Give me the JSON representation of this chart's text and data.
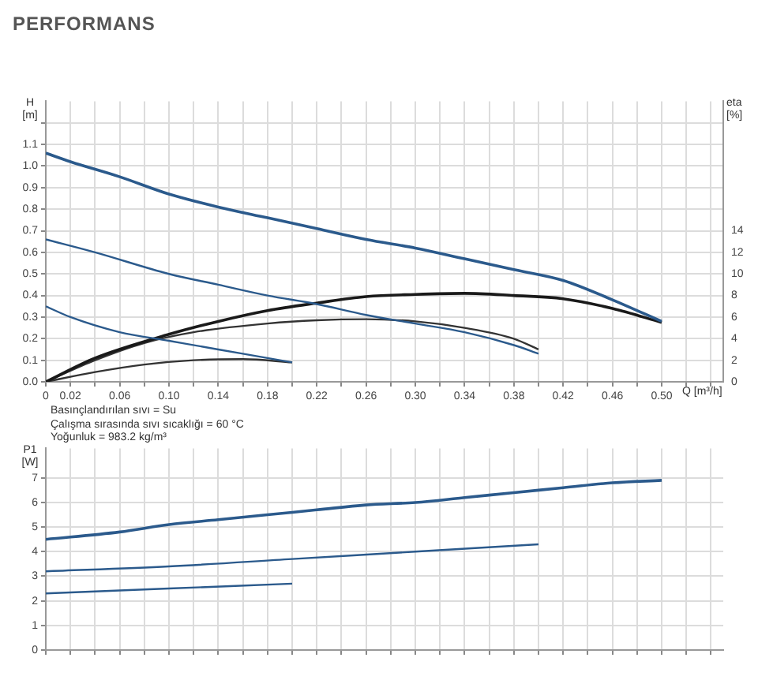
{
  "chart_data": [
    {
      "type": "line",
      "title": "PERFORMANS",
      "xlabel": "Q [m³/h]",
      "ylabel": "H [m]",
      "y2label": "eta [%]",
      "grid": true,
      "legend": false,
      "marker": "none",
      "annotations": [
        "Basınçlandırılan sıvı = Su",
        "Çalışma sırasında sıvı sıcaklığı = 60 °C",
        "Yoğunluk = 983.2 kg/m³"
      ],
      "xlim": [
        0,
        0.55
      ],
      "xticks": [
        {
          "value": 0,
          "label": "0"
        },
        0.02,
        {
          "value": 0.04,
          "label": null
        },
        0.06,
        {
          "value": 0.08,
          "label": null
        },
        {
          "value": 0.1,
          "label": "0.10"
        },
        {
          "value": 0.12,
          "label": null
        },
        0.14,
        {
          "value": 0.16,
          "label": null
        },
        0.18,
        {
          "value": 0.2,
          "label": null
        },
        0.22,
        {
          "value": 0.24,
          "label": null
        },
        0.26,
        {
          "value": 0.28,
          "label": null
        },
        {
          "value": 0.3,
          "label": "0.30"
        },
        {
          "value": 0.32,
          "label": null
        },
        0.34,
        {
          "value": 0.36,
          "label": null
        },
        0.38,
        {
          "value": 0.4,
          "label": null
        },
        0.42,
        {
          "value": 0.44,
          "label": null
        },
        0.46,
        {
          "value": 0.48,
          "label": null
        },
        {
          "value": 0.5,
          "label": "0.50"
        },
        {
          "value": 0.52,
          "label": null
        },
        {
          "value": 0.54,
          "label": null
        }
      ],
      "ylim": [
        0,
        1.3
      ],
      "yticks": [
        {
          "value": 0,
          "label": "0.0"
        },
        0.1,
        0.2,
        0.3,
        0.4,
        0.5,
        0.6,
        0.7,
        0.8,
        0.9,
        {
          "value": 1,
          "label": "1.0"
        },
        1.1,
        {
          "value": 1.2,
          "label": null
        }
      ],
      "y2lim": [
        0,
        26
      ],
      "y2ticks": [
        0,
        2,
        4,
        6,
        8,
        10,
        12,
        14
      ],
      "series": [
        {
          "color": "#2b5a8c",
          "x": [
            0,
            0.02,
            0.06,
            0.1,
            0.14,
            0.18,
            0.22,
            0.26,
            0.3,
            0.34,
            0.38,
            0.42,
            0.46,
            0.5
          ],
          "values": [
            1.06,
            1.02,
            0.95,
            0.87,
            0.81,
            0.76,
            0.71,
            0.66,
            0.62,
            0.57,
            0.52,
            0.47,
            0.38,
            0.28
          ]
        },
        {
          "color": "#2b5a8c",
          "x": [
            0,
            0.04,
            0.1,
            0.14,
            0.18,
            0.22,
            0.26,
            0.3,
            0.34,
            0.38,
            0.4
          ],
          "values": [
            0.66,
            0.6,
            0.5,
            0.45,
            0.4,
            0.36,
            0.31,
            0.27,
            0.23,
            0.17,
            0.13
          ]
        },
        {
          "color": "#2b5a8c",
          "x": [
            0,
            0.02,
            0.06,
            0.1,
            0.14,
            0.18,
            0.2
          ],
          "values": [
            0.35,
            0.3,
            0.23,
            0.19,
            0.15,
            0.11,
            0.09
          ]
        },
        {
          "color": "#1a1a1a",
          "axis": "y2",
          "x": [
            0,
            0.04,
            0.1,
            0.14,
            0.18,
            0.22,
            0.26,
            0.3,
            0.34,
            0.38,
            0.42,
            0.46,
            0.5
          ],
          "values": [
            0,
            2.2,
            4.4,
            5.6,
            6.6,
            7.3,
            7.9,
            8.1,
            8.2,
            8,
            7.7,
            6.8,
            5.5
          ]
        },
        {
          "color": "#333333",
          "axis": "y2",
          "x": [
            0,
            0.04,
            0.08,
            0.12,
            0.18,
            0.22,
            0.26,
            0.3,
            0.34,
            0.38,
            0.4
          ],
          "values": [
            0,
            2,
            3.6,
            4.6,
            5.4,
            5.7,
            5.8,
            5.6,
            5,
            4,
            3
          ]
        },
        {
          "color": "#333333",
          "axis": "y2",
          "x": [
            0,
            0.04,
            0.08,
            0.12,
            0.16,
            0.2
          ],
          "values": [
            0,
            0.9,
            1.6,
            2,
            2.1,
            1.8
          ]
        }
      ]
    },
    {
      "type": "line",
      "ylabel": "P1 [W]",
      "grid": true,
      "legend": false,
      "marker": "none",
      "tick_labels": "y",
      "xlim": [
        0,
        0.55
      ],
      "xticks": [
        0,
        0.02,
        0.04,
        0.06,
        0.08,
        0.1,
        0.12,
        0.14,
        0.16,
        0.18,
        0.2,
        0.22,
        0.24,
        0.26,
        0.28,
        0.3,
        0.32,
        0.34,
        0.36,
        0.38,
        0.4,
        0.42,
        0.44,
        0.46,
        0.48,
        0.5,
        0.52,
        0.54
      ],
      "ylim": [
        0,
        8.2
      ],
      "yticks": [
        0,
        1,
        2,
        3,
        4,
        5,
        6,
        7
      ],
      "series": [
        {
          "color": "#2b5a8c",
          "x": [
            0,
            0.06,
            0.1,
            0.14,
            0.18,
            0.22,
            0.26,
            0.3,
            0.34,
            0.38,
            0.42,
            0.46,
            0.5
          ],
          "values": [
            4.5,
            4.8,
            5.1,
            5.3,
            5.5,
            5.7,
            5.9,
            6,
            6.2,
            6.4,
            6.6,
            6.8,
            6.9
          ]
        },
        {
          "color": "#2b5a8c",
          "x": [
            0,
            0.1,
            0.2,
            0.3,
            0.4
          ],
          "values": [
            3.2,
            3.4,
            3.7,
            4,
            4.3
          ]
        },
        {
          "color": "#2b5a8c",
          "x": [
            0,
            0.1,
            0.2
          ],
          "values": [
            2.3,
            2.5,
            2.7
          ]
        }
      ]
    }
  ]
}
